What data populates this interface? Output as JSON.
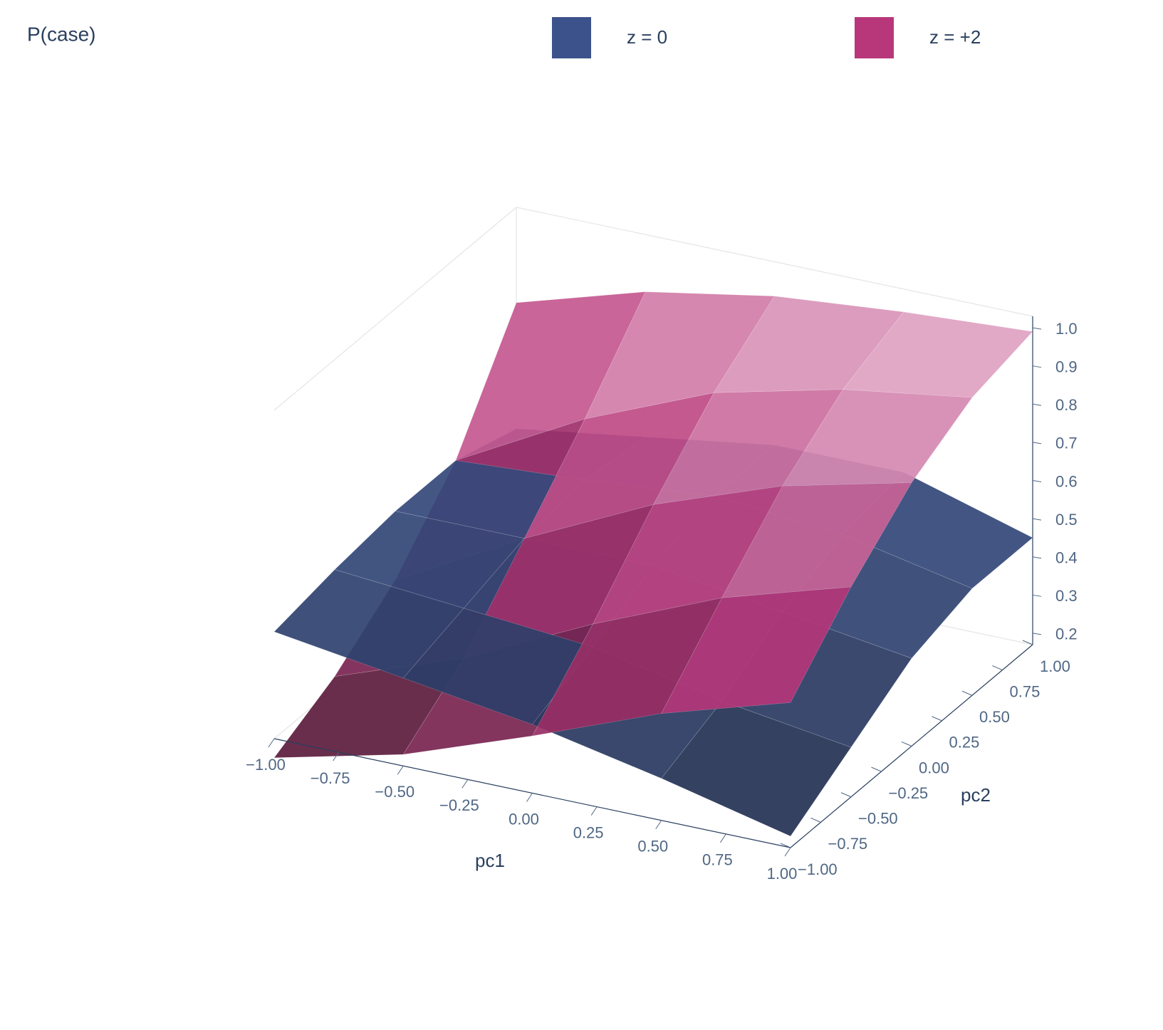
{
  "chart_data": {
    "type": "surface3d",
    "title": "P(case)",
    "x_label": "pc1",
    "y_label": "pc2",
    "x": [
      -1,
      -0.5,
      0,
      0.5,
      1
    ],
    "y": [
      -1,
      -0.5,
      0,
      0.5,
      1
    ],
    "xlim": [
      -1,
      1
    ],
    "ylim": [
      -1,
      1
    ],
    "zlim": [
      0.17,
      1.03
    ],
    "xticks": [
      {
        "value": -1,
        "label": "−1.00"
      },
      {
        "value": -0.75,
        "label": "−0.75"
      },
      {
        "value": -0.5,
        "label": "−0.50"
      },
      {
        "value": -0.25,
        "label": "−0.25"
      },
      {
        "value": 0,
        "label": "0.00"
      },
      0.25,
      {
        "value": 0.5,
        "label": "0.50"
      },
      0.75,
      {
        "value": 1,
        "label": "1.00"
      }
    ],
    "yticks": [
      {
        "value": -1,
        "label": "−1.00"
      },
      {
        "value": -0.75,
        "label": "−0.75"
      },
      {
        "value": -0.5,
        "label": "−0.50"
      },
      {
        "value": -0.25,
        "label": "−0.25"
      },
      {
        "value": 0,
        "label": "0.00"
      },
      0.25,
      {
        "value": 0.5,
        "label": "0.50"
      },
      0.75,
      {
        "value": 1,
        "label": "1.00"
      }
    ],
    "zticks": [
      0.2,
      0.3,
      0.4,
      0.5,
      0.6,
      0.7,
      0.8,
      0.9,
      {
        "value": 1,
        "label": "1.0"
      }
    ],
    "series": [
      {
        "name": "z = 0",
        "color": "#3b528b",
        "values": [
          [
            0.45,
            0.4,
            0.35,
            0.28,
            0.2
          ],
          [
            0.48,
            0.45,
            0.42,
            0.35,
            0.3
          ],
          [
            0.5,
            0.5,
            0.5,
            0.45,
            0.4
          ],
          [
            0.5,
            0.52,
            0.55,
            0.52,
            0.45
          ],
          [
            0.45,
            0.5,
            0.55,
            0.55,
            0.45
          ]
        ]
      },
      {
        "name": "z = +2",
        "color": "#b8377a",
        "values": [
          [
            0.12,
            0.2,
            0.32,
            0.45,
            0.55
          ],
          [
            0.2,
            0.32,
            0.48,
            0.62,
            0.72
          ],
          [
            0.32,
            0.5,
            0.66,
            0.78,
            0.86
          ],
          [
            0.5,
            0.68,
            0.82,
            0.9,
            0.95
          ],
          [
            0.78,
            0.88,
            0.94,
            0.97,
            0.99
          ]
        ]
      }
    ]
  }
}
